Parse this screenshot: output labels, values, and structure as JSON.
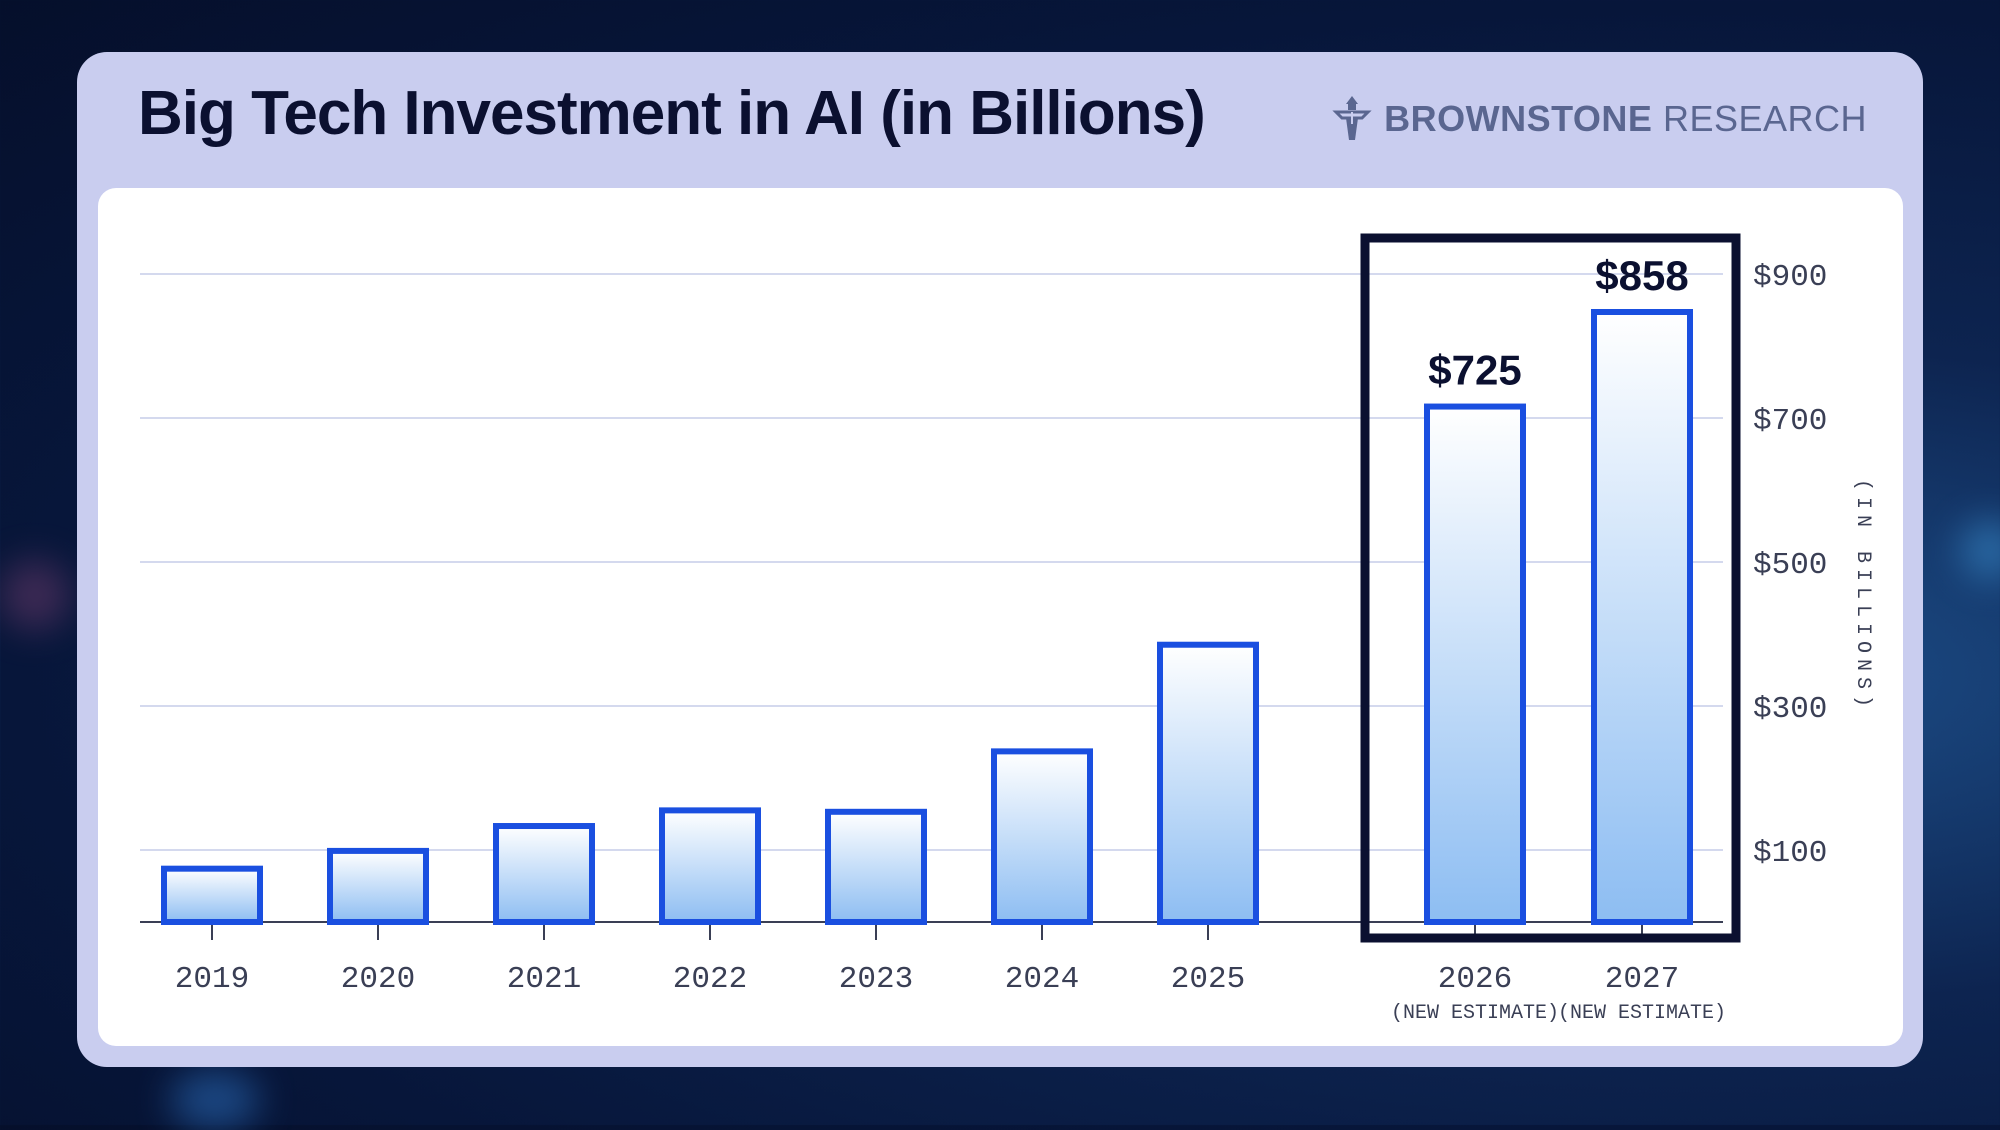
{
  "header": {
    "title": "Big Tech Investment in AI (in Billions)",
    "brand_bold": "BROWNSTONE",
    "brand_light": "RESEARCH",
    "brand_icon": "lighthouse-icon"
  },
  "colors": {
    "bar_stroke": "#1a4fe0",
    "bar_fill_top": "#ffffff",
    "bar_fill_bottom": "#8dbdf2",
    "highlight_box": "#0b1030",
    "card_bg": "#c9cdef"
  },
  "chart_data": {
    "type": "bar",
    "title": "Big Tech Investment in AI (in Billions)",
    "ylabel": "(IN BILLIONS)",
    "xlabel": "",
    "categories": [
      "2019",
      "2020",
      "2021",
      "2022",
      "2023",
      "2024",
      "2025",
      "2026",
      "2027"
    ],
    "category_sublabels": [
      "",
      "",
      "",
      "",
      "",
      "",
      "",
      "(NEW ESTIMATE)",
      "(NEW ESTIMATE)"
    ],
    "values": [
      75,
      100,
      135,
      157,
      155,
      240,
      390,
      725,
      858
    ],
    "data_labels": [
      "",
      "",
      "",
      "",
      "",
      "",
      "",
      "$725",
      "$858"
    ],
    "highlighted": [
      "2026",
      "2027"
    ],
    "yticks": [
      100,
      300,
      500,
      700,
      900
    ],
    "ytick_labels": [
      "$100",
      "$300",
      "$500",
      "$700",
      "$900"
    ],
    "ylim": [
      0,
      900
    ],
    "y_axis_side": "right",
    "grid": true
  }
}
